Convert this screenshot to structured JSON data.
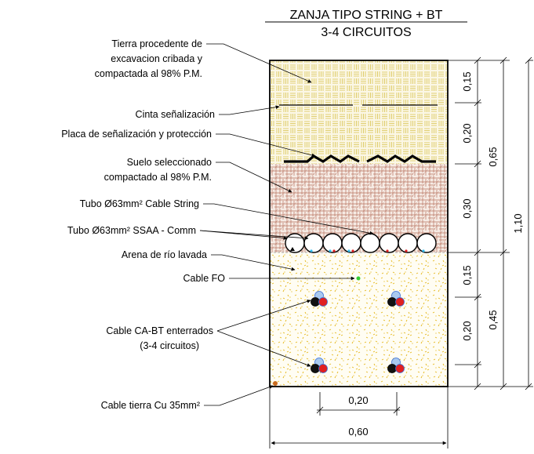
{
  "title": {
    "line1": "ZANJA TIPO STRING + BT",
    "line2": "3-4 CIRCUITOS"
  },
  "labels": {
    "tierra": [
      "Tierra procedente de",
      "excavacion cribada y",
      "compactada al 98% P.M."
    ],
    "cinta": "Cinta señalización",
    "placa": "Placa de señalización y protección",
    "suelo": [
      "Suelo seleccionado",
      "compactado al 98% P.M."
    ],
    "tubo_string": "Tubo Ø63mm² Cable String",
    "tubo_ssaa": "Tubo Ø63mm² SSAA - Comm",
    "arena": "Arena de río lavada",
    "cable_fo": "Cable FO",
    "cable_bt": [
      "Cable CA-BT enterrados",
      "(3-4 circuitos)"
    ],
    "cable_tierra": "Cable tierra Cu 35mm²"
  },
  "dimensions": {
    "d1": "0,15",
    "d2": "0,20",
    "d3": "0,30",
    "d4": "0,15",
    "d5": "0,20",
    "total_upper": "0,65",
    "total_lower": "0,45",
    "total": "1,10",
    "width_inner": "0,20",
    "width_total": "0,60"
  },
  "colors": {
    "fill_soil": "#d8c24a",
    "fill_selected": "#a8634a",
    "fill_sand": "#e8c020",
    "cable_red": "#e02020",
    "cable_blue": "#3a6fd8",
    "cable_light": "#a9c9ef",
    "cable_fo": "#33cc33",
    "cable_earth": "#c86a1e"
  }
}
